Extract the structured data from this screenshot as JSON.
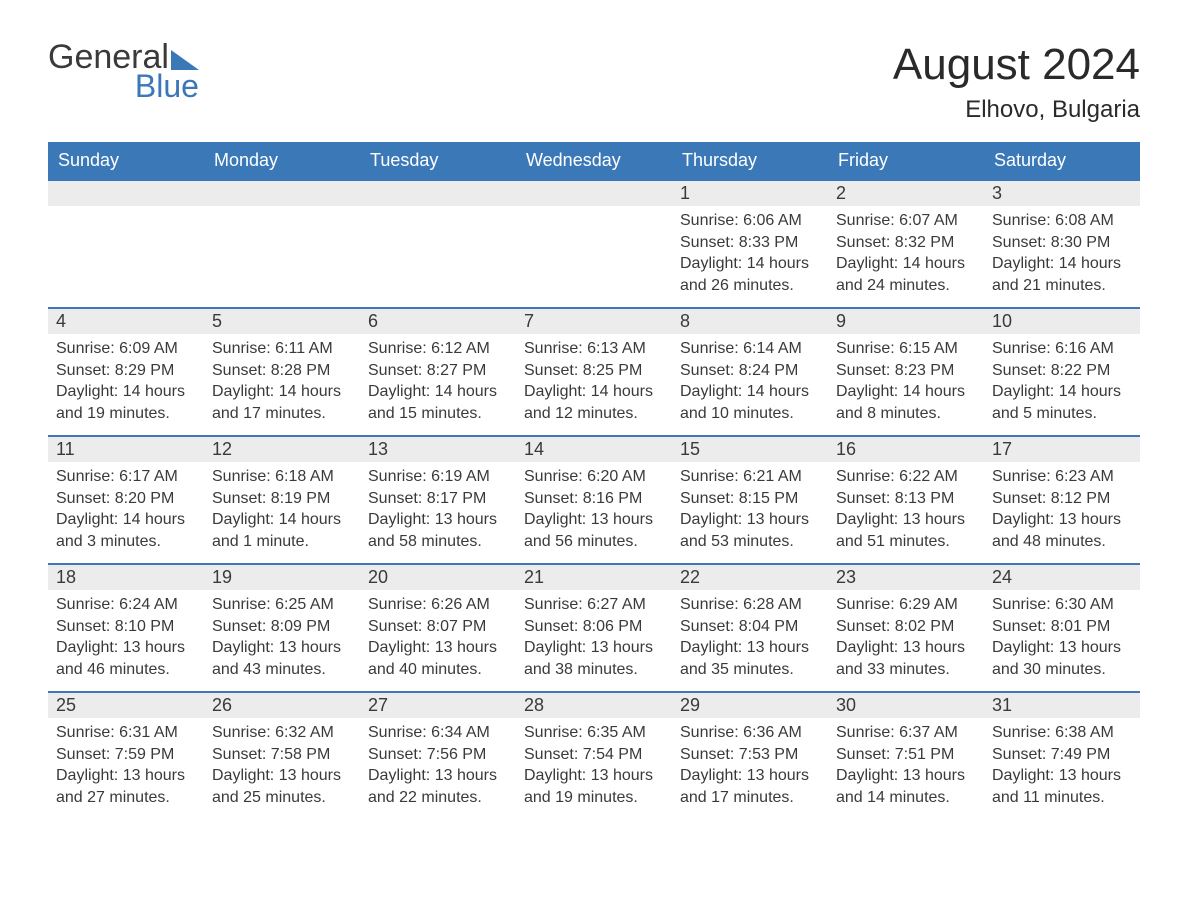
{
  "brand": {
    "text1": "General",
    "text2": "Blue",
    "accent": "#3a78b8"
  },
  "title": "August 2024",
  "location": "Elhovo, Bulgaria",
  "colors": {
    "header_bg": "#3a78b8",
    "header_text": "#ffffff",
    "daynum_bg": "#ececec",
    "row_border": "#3a78b8",
    "body_text": "#3a3a3a",
    "page_bg": "#ffffff"
  },
  "weekdays": [
    "Sunday",
    "Monday",
    "Tuesday",
    "Wednesday",
    "Thursday",
    "Friday",
    "Saturday"
  ],
  "first_weekday_index": 4,
  "days": [
    {
      "n": 1,
      "sunrise": "6:06 AM",
      "sunset": "8:33 PM",
      "daylight": "14 hours and 26 minutes."
    },
    {
      "n": 2,
      "sunrise": "6:07 AM",
      "sunset": "8:32 PM",
      "daylight": "14 hours and 24 minutes."
    },
    {
      "n": 3,
      "sunrise": "6:08 AM",
      "sunset": "8:30 PM",
      "daylight": "14 hours and 21 minutes."
    },
    {
      "n": 4,
      "sunrise": "6:09 AM",
      "sunset": "8:29 PM",
      "daylight": "14 hours and 19 minutes."
    },
    {
      "n": 5,
      "sunrise": "6:11 AM",
      "sunset": "8:28 PM",
      "daylight": "14 hours and 17 minutes."
    },
    {
      "n": 6,
      "sunrise": "6:12 AM",
      "sunset": "8:27 PM",
      "daylight": "14 hours and 15 minutes."
    },
    {
      "n": 7,
      "sunrise": "6:13 AM",
      "sunset": "8:25 PM",
      "daylight": "14 hours and 12 minutes."
    },
    {
      "n": 8,
      "sunrise": "6:14 AM",
      "sunset": "8:24 PM",
      "daylight": "14 hours and 10 minutes."
    },
    {
      "n": 9,
      "sunrise": "6:15 AM",
      "sunset": "8:23 PM",
      "daylight": "14 hours and 8 minutes."
    },
    {
      "n": 10,
      "sunrise": "6:16 AM",
      "sunset": "8:22 PM",
      "daylight": "14 hours and 5 minutes."
    },
    {
      "n": 11,
      "sunrise": "6:17 AM",
      "sunset": "8:20 PM",
      "daylight": "14 hours and 3 minutes."
    },
    {
      "n": 12,
      "sunrise": "6:18 AM",
      "sunset": "8:19 PM",
      "daylight": "14 hours and 1 minute."
    },
    {
      "n": 13,
      "sunrise": "6:19 AM",
      "sunset": "8:17 PM",
      "daylight": "13 hours and 58 minutes."
    },
    {
      "n": 14,
      "sunrise": "6:20 AM",
      "sunset": "8:16 PM",
      "daylight": "13 hours and 56 minutes."
    },
    {
      "n": 15,
      "sunrise": "6:21 AM",
      "sunset": "8:15 PM",
      "daylight": "13 hours and 53 minutes."
    },
    {
      "n": 16,
      "sunrise": "6:22 AM",
      "sunset": "8:13 PM",
      "daylight": "13 hours and 51 minutes."
    },
    {
      "n": 17,
      "sunrise": "6:23 AM",
      "sunset": "8:12 PM",
      "daylight": "13 hours and 48 minutes."
    },
    {
      "n": 18,
      "sunrise": "6:24 AM",
      "sunset": "8:10 PM",
      "daylight": "13 hours and 46 minutes."
    },
    {
      "n": 19,
      "sunrise": "6:25 AM",
      "sunset": "8:09 PM",
      "daylight": "13 hours and 43 minutes."
    },
    {
      "n": 20,
      "sunrise": "6:26 AM",
      "sunset": "8:07 PM",
      "daylight": "13 hours and 40 minutes."
    },
    {
      "n": 21,
      "sunrise": "6:27 AM",
      "sunset": "8:06 PM",
      "daylight": "13 hours and 38 minutes."
    },
    {
      "n": 22,
      "sunrise": "6:28 AM",
      "sunset": "8:04 PM",
      "daylight": "13 hours and 35 minutes."
    },
    {
      "n": 23,
      "sunrise": "6:29 AM",
      "sunset": "8:02 PM",
      "daylight": "13 hours and 33 minutes."
    },
    {
      "n": 24,
      "sunrise": "6:30 AM",
      "sunset": "8:01 PM",
      "daylight": "13 hours and 30 minutes."
    },
    {
      "n": 25,
      "sunrise": "6:31 AM",
      "sunset": "7:59 PM",
      "daylight": "13 hours and 27 minutes."
    },
    {
      "n": 26,
      "sunrise": "6:32 AM",
      "sunset": "7:58 PM",
      "daylight": "13 hours and 25 minutes."
    },
    {
      "n": 27,
      "sunrise": "6:34 AM",
      "sunset": "7:56 PM",
      "daylight": "13 hours and 22 minutes."
    },
    {
      "n": 28,
      "sunrise": "6:35 AM",
      "sunset": "7:54 PM",
      "daylight": "13 hours and 19 minutes."
    },
    {
      "n": 29,
      "sunrise": "6:36 AM",
      "sunset": "7:53 PM",
      "daylight": "13 hours and 17 minutes."
    },
    {
      "n": 30,
      "sunrise": "6:37 AM",
      "sunset": "7:51 PM",
      "daylight": "13 hours and 14 minutes."
    },
    {
      "n": 31,
      "sunrise": "6:38 AM",
      "sunset": "7:49 PM",
      "daylight": "13 hours and 11 minutes."
    }
  ],
  "labels": {
    "sunrise": "Sunrise:",
    "sunset": "Sunset:",
    "daylight": "Daylight:"
  }
}
